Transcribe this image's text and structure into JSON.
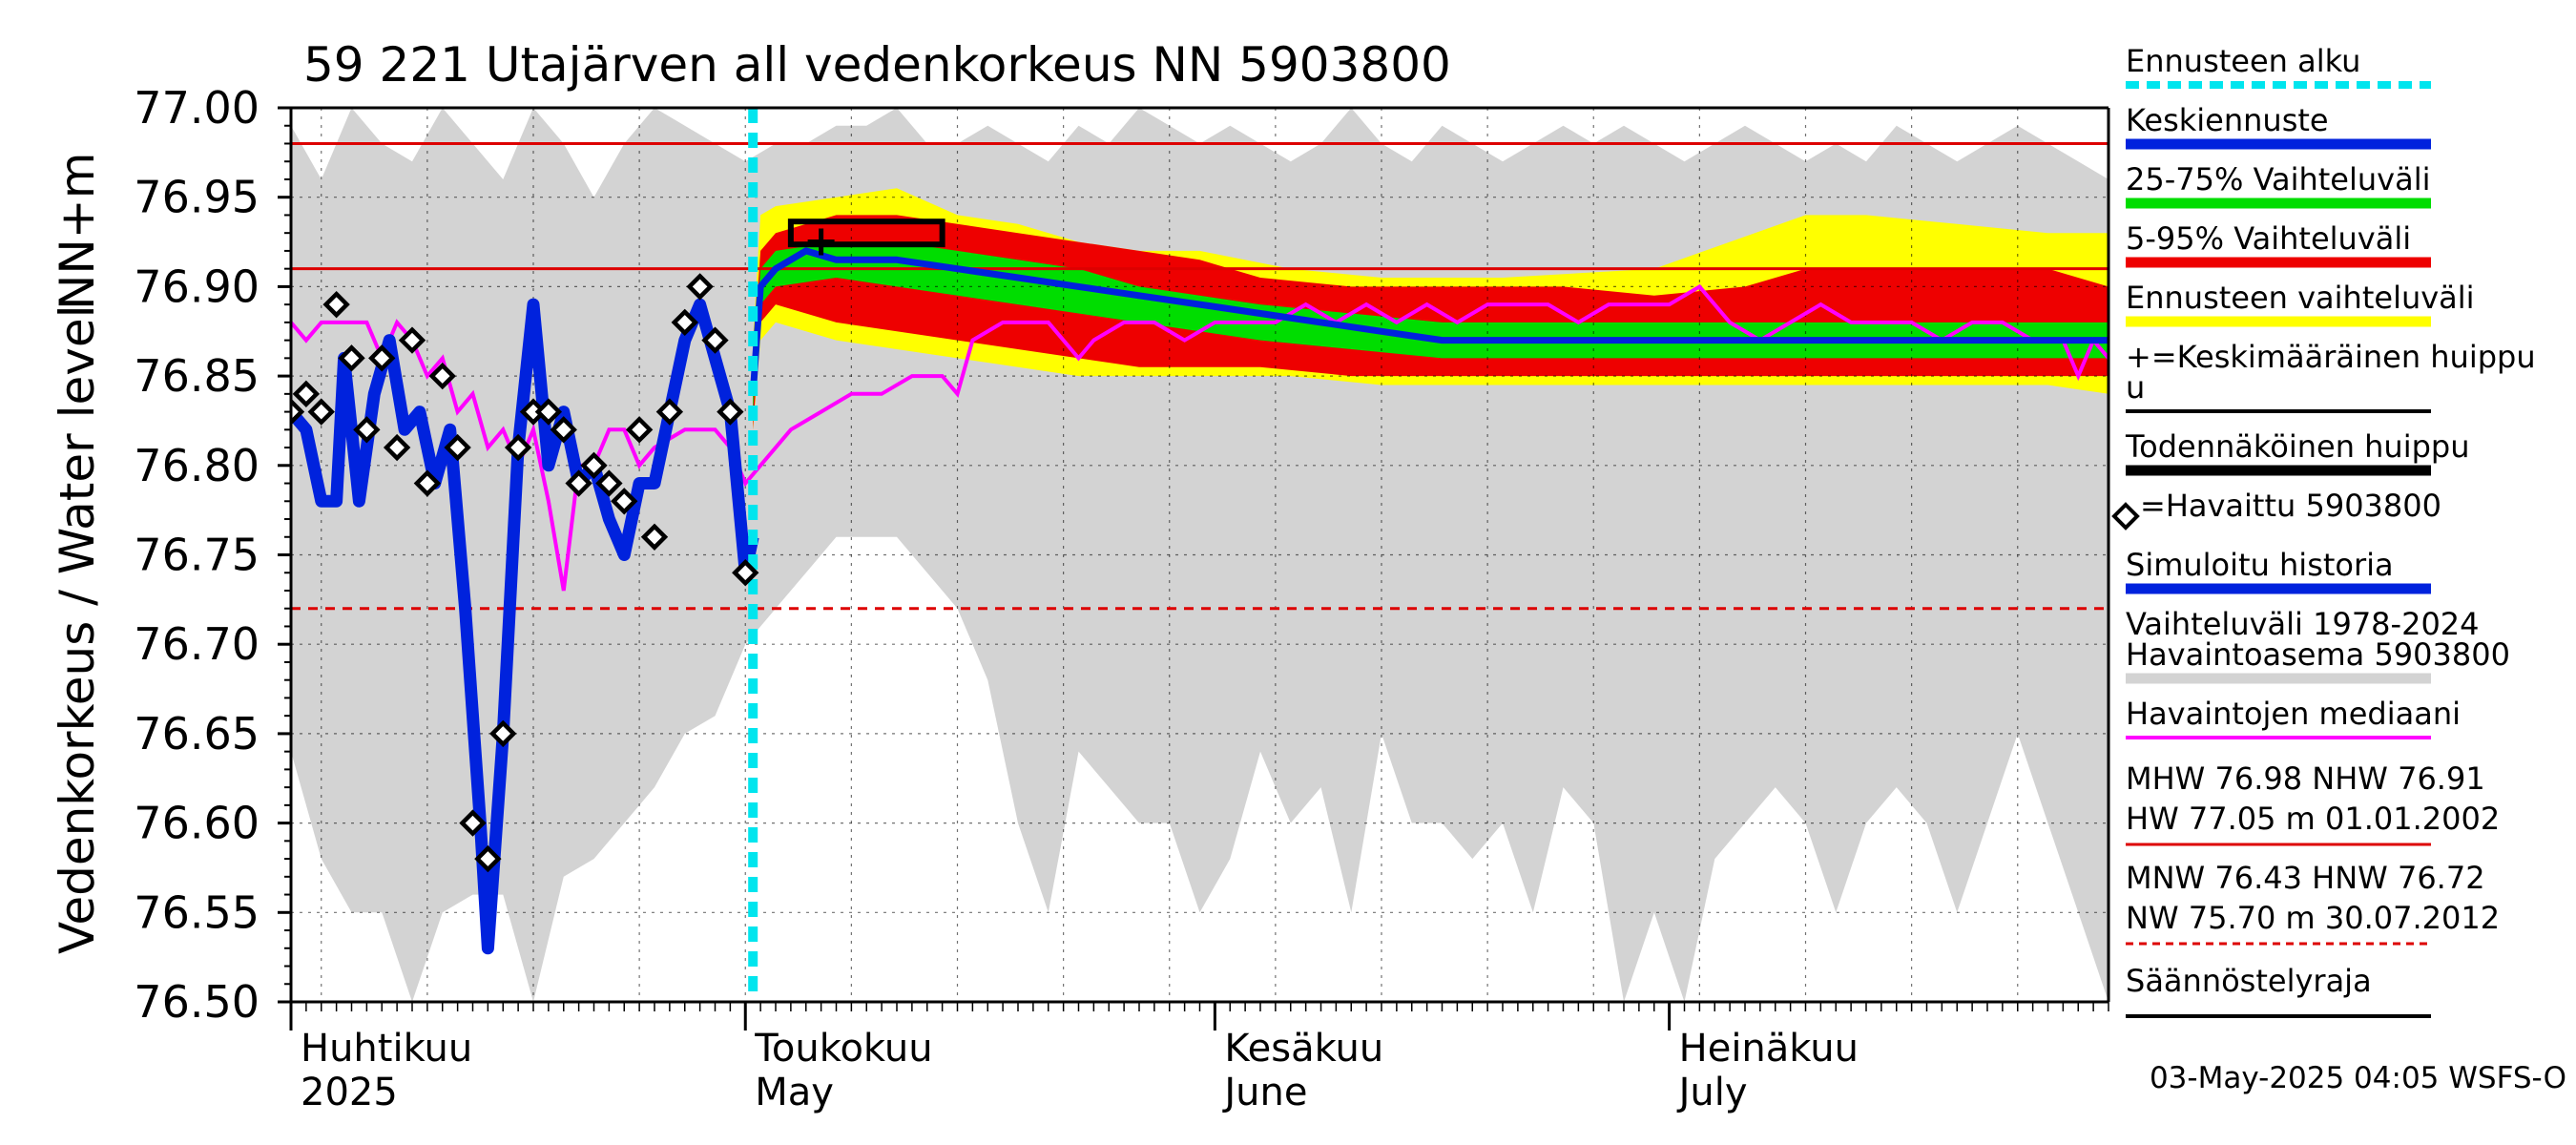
{
  "chart_data": {
    "type": "line",
    "title": "59 221 Utajärven all vedenkorkeus NN 5903800",
    "ylabel_fi": "Vedenkorkeus / Water level",
    "ylabel_unit": "NN+m",
    "ylim": [
      76.5,
      77.0
    ],
    "yticks": [
      "76.50",
      "76.55",
      "76.60",
      "76.65",
      "76.70",
      "76.75",
      "76.80",
      "76.85",
      "76.90",
      "76.95",
      "77.00"
    ],
    "x_range_days": [
      0,
      120
    ],
    "months": [
      {
        "fi": "Huhtikuu",
        "en": "2025",
        "day": 0
      },
      {
        "fi": "Toukokuu",
        "en": "May",
        "day": 30
      },
      {
        "fi": "Kesäkuu",
        "en": "June",
        "day": 61
      },
      {
        "fi": "Heinäkuu",
        "en": "July",
        "day": 91
      }
    ],
    "forecast_start_day": 30.5,
    "reference_lines": {
      "MHW": 76.98,
      "NHW": 76.91,
      "HNW": 76.72
    },
    "probable_peak": {
      "day_start": 33,
      "day_end": 43,
      "level": 76.93
    },
    "mean_peak": {
      "day": 35,
      "level": 76.925
    },
    "observed": [
      [
        0,
        76.83
      ],
      [
        1,
        76.84
      ],
      [
        2,
        76.83
      ],
      [
        3,
        76.89
      ],
      [
        4,
        76.86
      ],
      [
        5,
        76.82
      ],
      [
        6,
        76.86
      ],
      [
        7,
        76.81
      ],
      [
        8,
        76.87
      ],
      [
        9,
        76.79
      ],
      [
        10,
        76.85
      ],
      [
        11,
        76.81
      ],
      [
        12,
        76.6
      ],
      [
        13,
        76.58
      ],
      [
        14,
        76.65
      ],
      [
        15,
        76.81
      ],
      [
        16,
        76.83
      ],
      [
        17,
        76.83
      ],
      [
        18,
        76.82
      ],
      [
        19,
        76.79
      ],
      [
        20,
        76.8
      ],
      [
        21,
        76.79
      ],
      [
        22,
        76.78
      ],
      [
        23,
        76.82
      ],
      [
        24,
        76.76
      ],
      [
        25,
        76.83
      ],
      [
        26,
        76.88
      ],
      [
        27,
        76.9
      ],
      [
        28,
        76.87
      ],
      [
        29,
        76.83
      ],
      [
        30,
        76.74
      ]
    ],
    "simulated_history": [
      [
        0,
        76.83
      ],
      [
        1,
        76.82
      ],
      [
        2,
        76.78
      ],
      [
        3,
        76.78
      ],
      [
        3.5,
        76.86
      ],
      [
        4.5,
        76.78
      ],
      [
        5.5,
        76.84
      ],
      [
        6.5,
        76.87
      ],
      [
        7.5,
        76.82
      ],
      [
        8.5,
        76.83
      ],
      [
        9.5,
        76.79
      ],
      [
        10.5,
        76.82
      ],
      [
        11.5,
        76.72
      ],
      [
        12.5,
        76.6
      ],
      [
        13,
        76.53
      ],
      [
        14,
        76.65
      ],
      [
        15,
        76.81
      ],
      [
        16,
        76.89
      ],
      [
        17,
        76.8
      ],
      [
        18,
        76.83
      ],
      [
        19,
        76.79
      ],
      [
        20,
        76.8
      ],
      [
        21,
        76.77
      ],
      [
        22,
        76.75
      ],
      [
        23,
        76.79
      ],
      [
        24,
        76.79
      ],
      [
        25,
        76.83
      ],
      [
        26,
        76.87
      ],
      [
        27,
        76.89
      ],
      [
        28,
        76.86
      ],
      [
        29,
        76.83
      ],
      [
        30,
        76.74
      ],
      [
        30.5,
        76.76
      ]
    ],
    "median_history": [
      [
        0,
        76.88
      ],
      [
        1,
        76.87
      ],
      [
        2,
        76.88
      ],
      [
        4,
        76.88
      ],
      [
        5,
        76.88
      ],
      [
        6,
        76.86
      ],
      [
        7,
        76.88
      ],
      [
        8,
        76.87
      ],
      [
        9,
        76.85
      ],
      [
        10,
        76.86
      ],
      [
        11,
        76.83
      ],
      [
        12,
        76.84
      ],
      [
        13,
        76.81
      ],
      [
        14,
        76.82
      ],
      [
        15,
        76.8
      ],
      [
        16,
        76.82
      ],
      [
        17,
        76.78
      ],
      [
        18,
        76.73
      ],
      [
        19,
        76.8
      ],
      [
        20,
        76.8
      ],
      [
        21,
        76.82
      ],
      [
        22,
        76.82
      ],
      [
        23,
        76.8
      ],
      [
        24,
        76.81
      ],
      [
        26,
        76.82
      ],
      [
        28,
        76.82
      ],
      [
        29,
        76.81
      ],
      [
        30,
        76.79
      ],
      [
        31,
        76.8
      ],
      [
        33,
        76.82
      ],
      [
        35,
        76.83
      ],
      [
        37,
        76.84
      ],
      [
        39,
        76.84
      ],
      [
        41,
        76.85
      ],
      [
        43,
        76.85
      ],
      [
        44,
        76.84
      ],
      [
        45,
        76.87
      ],
      [
        47,
        76.88
      ],
      [
        48,
        76.88
      ],
      [
        50,
        76.88
      ],
      [
        51,
        76.87
      ],
      [
        52,
        76.86
      ],
      [
        53,
        76.87
      ],
      [
        55,
        76.88
      ],
      [
        57,
        76.88
      ],
      [
        59,
        76.87
      ],
      [
        61,
        76.88
      ],
      [
        63,
        76.88
      ],
      [
        65,
        76.88
      ],
      [
        67,
        76.89
      ],
      [
        69,
        76.88
      ],
      [
        71,
        76.89
      ],
      [
        73,
        76.88
      ],
      [
        75,
        76.89
      ],
      [
        77,
        76.88
      ],
      [
        79,
        76.89
      ],
      [
        81,
        76.89
      ],
      [
        83,
        76.89
      ],
      [
        85,
        76.88
      ],
      [
        87,
        76.89
      ],
      [
        89,
        76.89
      ],
      [
        91,
        76.89
      ],
      [
        93,
        76.9
      ],
      [
        95,
        76.88
      ],
      [
        97,
        76.87
      ],
      [
        99,
        76.88
      ],
      [
        101,
        76.89
      ],
      [
        103,
        76.88
      ],
      [
        105,
        76.88
      ],
      [
        107,
        76.88
      ],
      [
        109,
        76.87
      ],
      [
        111,
        76.88
      ],
      [
        113,
        76.88
      ],
      [
        115,
        76.87
      ],
      [
        117,
        76.87
      ],
      [
        118,
        76.85
      ],
      [
        119,
        76.87
      ],
      [
        120,
        76.86
      ]
    ],
    "forecast_median": [
      [
        30.5,
        76.84
      ],
      [
        31,
        76.9
      ],
      [
        32,
        76.91
      ],
      [
        34,
        76.92
      ],
      [
        36,
        76.915
      ],
      [
        40,
        76.915
      ],
      [
        44,
        76.91
      ],
      [
        48,
        76.905
      ],
      [
        52,
        76.9
      ],
      [
        56,
        76.895
      ],
      [
        60,
        76.89
      ],
      [
        64,
        76.885
      ],
      [
        68,
        76.88
      ],
      [
        72,
        76.875
      ],
      [
        76,
        76.87
      ],
      [
        80,
        76.87
      ],
      [
        84,
        76.87
      ],
      [
        88,
        76.87
      ],
      [
        92,
        76.87
      ],
      [
        96,
        76.87
      ],
      [
        100,
        76.87
      ],
      [
        104,
        76.87
      ],
      [
        108,
        76.87
      ],
      [
        112,
        76.87
      ],
      [
        116,
        76.87
      ],
      [
        120,
        76.87
      ]
    ],
    "band_25_75": [
      [
        30.5,
        76.83,
        76.85
      ],
      [
        31,
        76.89,
        76.91
      ],
      [
        32,
        76.9,
        76.92
      ],
      [
        36,
        76.905,
        76.925
      ],
      [
        40,
        76.9,
        76.925
      ],
      [
        44,
        76.895,
        76.92
      ],
      [
        48,
        76.89,
        76.915
      ],
      [
        52,
        76.885,
        76.91
      ],
      [
        56,
        76.88,
        76.9
      ],
      [
        60,
        76.875,
        76.895
      ],
      [
        64,
        76.87,
        76.89
      ],
      [
        70,
        76.865,
        76.885
      ],
      [
        76,
        76.86,
        76.88
      ],
      [
        84,
        76.86,
        76.88
      ],
      [
        92,
        76.86,
        76.88
      ],
      [
        100,
        76.86,
        76.88
      ],
      [
        110,
        76.86,
        76.88
      ],
      [
        120,
        76.86,
        76.88
      ]
    ],
    "band_5_95": [
      [
        30.5,
        76.82,
        76.86
      ],
      [
        31,
        76.88,
        76.92
      ],
      [
        32,
        76.89,
        76.93
      ],
      [
        36,
        76.88,
        76.94
      ],
      [
        40,
        76.875,
        76.94
      ],
      [
        44,
        76.87,
        76.935
      ],
      [
        48,
        76.865,
        76.93
      ],
      [
        52,
        76.86,
        76.925
      ],
      [
        56,
        76.855,
        76.92
      ],
      [
        60,
        76.855,
        76.915
      ],
      [
        64,
        76.855,
        76.905
      ],
      [
        70,
        76.85,
        76.9
      ],
      [
        76,
        76.85,
        76.9
      ],
      [
        84,
        76.85,
        76.9
      ],
      [
        90,
        76.85,
        76.895
      ],
      [
        96,
        76.85,
        76.9
      ],
      [
        100,
        76.85,
        76.91
      ],
      [
        104,
        76.85,
        76.91
      ],
      [
        110,
        76.85,
        76.91
      ],
      [
        116,
        76.85,
        76.91
      ],
      [
        120,
        76.85,
        76.9
      ]
    ],
    "band_forecast_range": [
      [
        30.5,
        76.82,
        76.87
      ],
      [
        31,
        76.87,
        76.94
      ],
      [
        32,
        76.88,
        76.945
      ],
      [
        36,
        76.87,
        76.95
      ],
      [
        40,
        76.865,
        76.955
      ],
      [
        44,
        76.86,
        76.94
      ],
      [
        48,
        76.855,
        76.935
      ],
      [
        52,
        76.85,
        76.925
      ],
      [
        56,
        76.85,
        76.92
      ],
      [
        60,
        76.85,
        76.92
      ],
      [
        66,
        76.85,
        76.91
      ],
      [
        72,
        76.845,
        76.905
      ],
      [
        80,
        76.845,
        76.905
      ],
      [
        90,
        76.845,
        76.91
      ],
      [
        100,
        76.845,
        76.94
      ],
      [
        104,
        76.845,
        76.94
      ],
      [
        110,
        76.845,
        76.935
      ],
      [
        116,
        76.845,
        76.93
      ],
      [
        120,
        76.84,
        76.93
      ]
    ],
    "band_history": [
      [
        0,
        76.64,
        76.99
      ],
      [
        2,
        76.58,
        76.96
      ],
      [
        4,
        76.55,
        77.0
      ],
      [
        6,
        76.55,
        76.98
      ],
      [
        8,
        76.5,
        76.97
      ],
      [
        10,
        76.55,
        77.0
      ],
      [
        12,
        76.56,
        76.98
      ],
      [
        14,
        76.56,
        76.96
      ],
      [
        16,
        76.5,
        77.0
      ],
      [
        18,
        76.57,
        76.98
      ],
      [
        20,
        76.58,
        76.95
      ],
      [
        22,
        76.6,
        76.98
      ],
      [
        24,
        76.62,
        77.0
      ],
      [
        26,
        76.65,
        76.99
      ],
      [
        28,
        76.66,
        76.98
      ],
      [
        30,
        76.7,
        76.97
      ],
      [
        32,
        76.72,
        76.98
      ],
      [
        34,
        76.74,
        76.98
      ],
      [
        36,
        76.76,
        76.99
      ],
      [
        38,
        76.76,
        76.99
      ],
      [
        40,
        76.76,
        77.0
      ],
      [
        42,
        76.74,
        76.98
      ],
      [
        44,
        76.72,
        76.98
      ],
      [
        46,
        76.68,
        76.99
      ],
      [
        48,
        76.6,
        76.98
      ],
      [
        50,
        76.55,
        76.97
      ],
      [
        52,
        76.64,
        76.99
      ],
      [
        54,
        76.62,
        76.98
      ],
      [
        56,
        76.6,
        77.0
      ],
      [
        58,
        76.6,
        76.99
      ],
      [
        60,
        76.55,
        76.98
      ],
      [
        62,
        76.58,
        76.99
      ],
      [
        64,
        76.64,
        76.98
      ],
      [
        66,
        76.6,
        76.97
      ],
      [
        68,
        76.62,
        76.98
      ],
      [
        70,
        76.55,
        77.0
      ],
      [
        72,
        76.65,
        76.98
      ],
      [
        74,
        76.6,
        76.97
      ],
      [
        76,
        76.6,
        76.99
      ],
      [
        78,
        76.58,
        76.98
      ],
      [
        80,
        76.6,
        76.97
      ],
      [
        82,
        76.55,
        76.98
      ],
      [
        84,
        76.62,
        76.99
      ],
      [
        86,
        76.6,
        76.98
      ],
      [
        88,
        76.5,
        76.99
      ],
      [
        90,
        76.55,
        76.98
      ],
      [
        92,
        76.5,
        76.97
      ],
      [
        94,
        76.58,
        76.98
      ],
      [
        96,
        76.6,
        76.99
      ],
      [
        98,
        76.62,
        76.98
      ],
      [
        100,
        76.6,
        76.97
      ],
      [
        102,
        76.55,
        76.98
      ],
      [
        104,
        76.6,
        76.97
      ],
      [
        106,
        76.62,
        76.99
      ],
      [
        108,
        76.6,
        76.98
      ],
      [
        110,
        76.55,
        76.97
      ],
      [
        112,
        76.6,
        76.98
      ],
      [
        114,
        76.65,
        76.99
      ],
      [
        116,
        76.6,
        76.98
      ],
      [
        118,
        76.55,
        76.97
      ],
      [
        120,
        76.5,
        76.96
      ]
    ]
  },
  "legend": [
    {
      "label": "Ennusteen alku",
      "color": "#00e5ee",
      "style": "dashed"
    },
    {
      "label": "Keskiennuste",
      "color": "#0022dd",
      "style": "thick"
    },
    {
      "label": "25-75% Vaihteluväli",
      "color": "#00dd00",
      "style": "thick"
    },
    {
      "label": "5-95% Vaihteluväli",
      "color": "#ee0000",
      "style": "thick"
    },
    {
      "label": "Ennusteen vaihteluväli",
      "color": "#ffff00",
      "style": "thick"
    },
    {
      "label": "+=Keskimääräinen huippu",
      "label2": "u",
      "color": "#000000",
      "style": "line"
    },
    {
      "label": "Todennäköinen huippu",
      "color": "#000000",
      "style": "thick"
    },
    {
      "label": "=Havaittu 5903800",
      "color": "#000000",
      "style": "none"
    },
    {
      "label": "Simuloitu historia",
      "color": "#0022dd",
      "style": "thick"
    },
    {
      "label": "Vaihteluväli 1978-2024",
      "label2": " Havaintoasema 5903800",
      "color": "#d3d3d3",
      "style": "thick"
    },
    {
      "label": "Havaintojen mediaani",
      "color": "#ff00ff",
      "style": "line"
    }
  ],
  "stats": {
    "line1": "MHW  76.98 NHW  76.91",
    "line2": "HW  77.05 m 01.01.2002",
    "line3": "MNW  76.43 HNW  76.72",
    "line4": "NW  75.70 m 30.07.2012",
    "last": "Säännöstelyraja"
  },
  "colors": {
    "history_band": "#d3d3d3",
    "yellow": "#ffff00",
    "red": "#ee0000",
    "green": "#00dd00",
    "blue": "#0022dd",
    "magenta": "#ff00ff",
    "cyan": "#00e5ee",
    "ref_red": "#dd0000"
  },
  "timestamp": "03-May-2025 04:05 WSFS-O"
}
